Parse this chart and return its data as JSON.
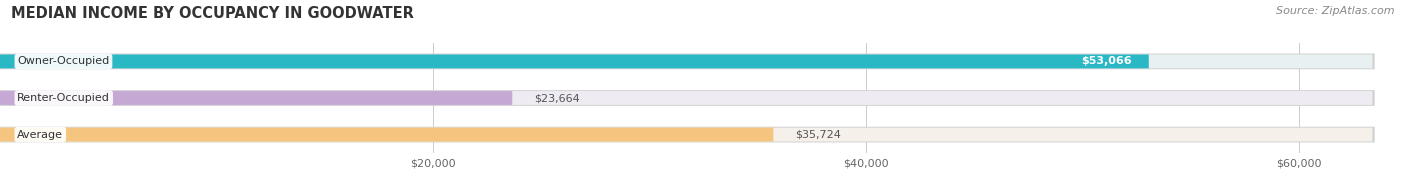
{
  "title": "MEDIAN INCOME BY OCCUPANCY IN GOODWATER",
  "source": "Source: ZipAtlas.com",
  "categories": [
    "Owner-Occupied",
    "Renter-Occupied",
    "Average"
  ],
  "values": [
    53066,
    23664,
    35724
  ],
  "labels": [
    "$53,066",
    "$23,664",
    "$35,724"
  ],
  "label_colors": [
    "#ffffff",
    "#555555",
    "#555555"
  ],
  "bar_colors": [
    "#2ab8c5",
    "#c5a8d4",
    "#f5c47e"
  ],
  "bar_bg_colors": [
    "#e8f0f2",
    "#eeebf2",
    "#f5f0ea"
  ],
  "xlim": [
    0,
    63000
  ],
  "xticks": [
    20000,
    40000,
    60000
  ],
  "xticklabels": [
    "$20,000",
    "$40,000",
    "$60,000"
  ],
  "bar_height": 0.38,
  "figsize": [
    14.06,
    1.96
  ],
  "dpi": 100,
  "title_fontsize": 10.5,
  "label_fontsize": 8,
  "tick_fontsize": 8,
  "source_fontsize": 8,
  "bg_color": "#ffffff",
  "grid_color": "#cccccc"
}
